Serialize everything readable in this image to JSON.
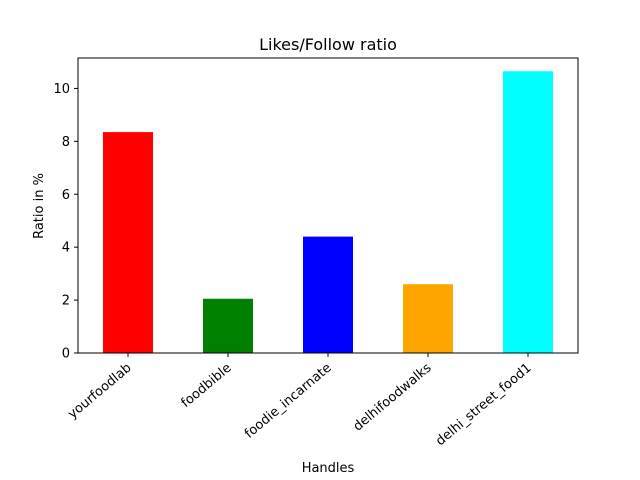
{
  "chart_data": {
    "type": "bar",
    "title": "Likes/Follow ratio",
    "xlabel": "Handles",
    "ylabel": "Ratio in %",
    "categories": [
      "yourfoodlab",
      "foodbible",
      "foodie_incarnate",
      "delhifoodwalks",
      "delhi_street_food1"
    ],
    "values": [
      8.35,
      2.05,
      4.4,
      2.6,
      10.65
    ],
    "colors": [
      "#ff0000",
      "#008000",
      "#0000ff",
      "#ffa500",
      "#00ffff"
    ],
    "ylim": [
      0,
      11.15
    ],
    "yticks": [
      0,
      2,
      4,
      6,
      8,
      10
    ],
    "grid": false,
    "xtick_rotation_deg": 40
  }
}
